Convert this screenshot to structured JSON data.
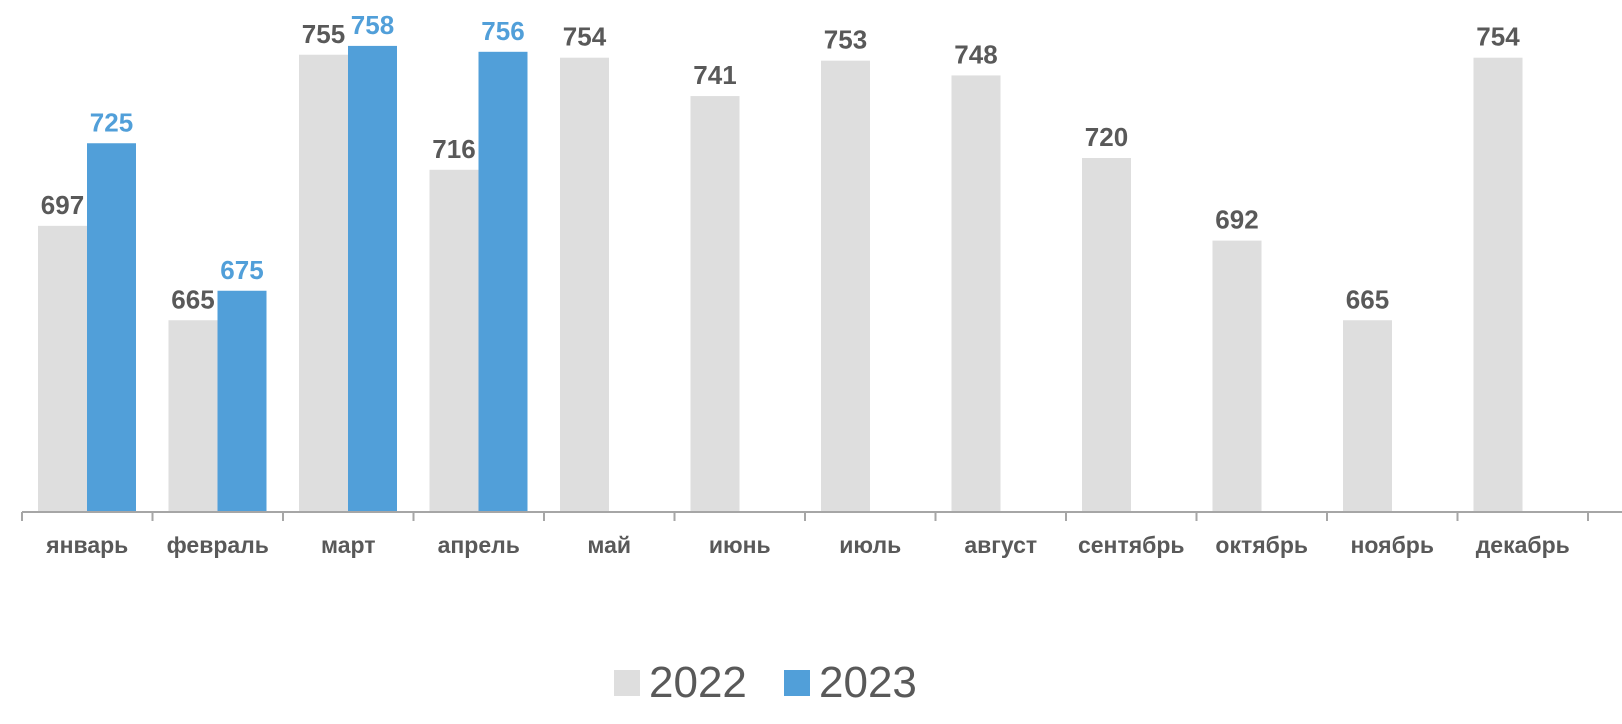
{
  "chart_data": {
    "type": "bar",
    "categories": [
      "январь",
      "февраль",
      "март",
      "апрель",
      "май",
      "июнь",
      "июль",
      "август",
      "сентябрь",
      "октябрь",
      "ноябрь",
      "декабрь"
    ],
    "series": [
      {
        "name": "2022",
        "color": "#dedede",
        "label_color": "#595959",
        "values": [
          697,
          665,
          755,
          716,
          754,
          741,
          753,
          748,
          720,
          692,
          665,
          754
        ]
      },
      {
        "name": "2023",
        "color": "#519fd9",
        "label_color": "#519fd9",
        "values": [
          725,
          675,
          758,
          756,
          null,
          null,
          null,
          null,
          null,
          null,
          null,
          null
        ]
      }
    ],
    "ylim": [
      600,
      770
    ],
    "grid": false,
    "legend_position": "bottom-center"
  }
}
